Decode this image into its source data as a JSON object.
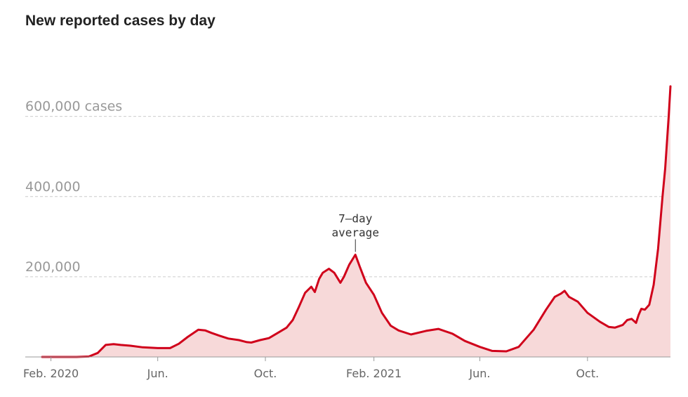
{
  "chart_data": {
    "type": "area",
    "title": "New reported cases by day",
    "xlabel": "",
    "ylabel": "",
    "ylim": [
      0,
      680000
    ],
    "grid": true,
    "yticks": [
      {
        "value": 200000,
        "label": "200,000"
      },
      {
        "value": 400000,
        "label": "400,000"
      },
      {
        "value": 600000,
        "label": "600,000 cases"
      }
    ],
    "xticks": [
      {
        "date": "2020-02-01",
        "label": "Feb. 2020"
      },
      {
        "date": "2020-06-01",
        "label": "Jun."
      },
      {
        "date": "2020-10-01",
        "label": "Oct."
      },
      {
        "date": "2021-02-01",
        "label": "Feb. 2021"
      },
      {
        "date": "2021-06-01",
        "label": "Jun."
      },
      {
        "date": "2021-10-01",
        "label": "Oct."
      }
    ],
    "annotation": {
      "lines": [
        "7–day",
        "average"
      ],
      "date": "2021-01-11",
      "value": 255000
    },
    "colors": {
      "line": "#d0021b",
      "fill": "#f7d9d9"
    },
    "series": [
      {
        "x": [
          "2020-01-22",
          "2020-02-15",
          "2020-03-01",
          "2020-03-15",
          "2020-03-25",
          "2020-04-03",
          "2020-04-12",
          "2020-04-20",
          "2020-05-01",
          "2020-05-15",
          "2020-06-01",
          "2020-06-15",
          "2020-06-25",
          "2020-07-05",
          "2020-07-17",
          "2020-07-25",
          "2020-08-01",
          "2020-08-10",
          "2020-08-20",
          "2020-09-01",
          "2020-09-10",
          "2020-09-15",
          "2020-09-25",
          "2020-10-05",
          "2020-10-15",
          "2020-10-25",
          "2020-11-01",
          "2020-11-08",
          "2020-11-15",
          "2020-11-22",
          "2020-11-26",
          "2020-12-01",
          "2020-12-05",
          "2020-12-12",
          "2020-12-18",
          "2020-12-25",
          "2020-12-29",
          "2021-01-04",
          "2021-01-11",
          "2021-01-16",
          "2021-01-23",
          "2021-02-01",
          "2021-02-10",
          "2021-02-20",
          "2021-03-01",
          "2021-03-15",
          "2021-04-01",
          "2021-04-15",
          "2021-05-01",
          "2021-05-15",
          "2021-06-01",
          "2021-06-15",
          "2021-07-01",
          "2021-07-15",
          "2021-08-01",
          "2021-08-15",
          "2021-08-25",
          "2021-09-01",
          "2021-09-05",
          "2021-09-10",
          "2021-09-20",
          "2021-10-01",
          "2021-10-15",
          "2021-10-25",
          "2021-11-01",
          "2021-11-10",
          "2021-11-15",
          "2021-11-20",
          "2021-11-25",
          "2021-11-28",
          "2021-12-01",
          "2021-12-05",
          "2021-12-10",
          "2021-12-15",
          "2021-12-20",
          "2021-12-25",
          "2021-12-28",
          "2022-01-01",
          "2022-01-03"
        ],
        "y": [
          0,
          0,
          0,
          1000,
          10000,
          30000,
          32000,
          30000,
          28000,
          24000,
          22000,
          22000,
          33000,
          50000,
          68000,
          66000,
          60000,
          53000,
          46000,
          42000,
          37000,
          36000,
          42000,
          47000,
          60000,
          73000,
          92000,
          125000,
          160000,
          175000,
          162000,
          195000,
          210000,
          220000,
          210000,
          185000,
          200000,
          230000,
          255000,
          225000,
          185000,
          155000,
          110000,
          78000,
          66000,
          56000,
          65000,
          70000,
          58000,
          40000,
          25000,
          15000,
          14000,
          25000,
          68000,
          118000,
          150000,
          158000,
          165000,
          150000,
          138000,
          110000,
          88000,
          75000,
          73000,
          80000,
          92000,
          95000,
          85000,
          105000,
          120000,
          118000,
          130000,
          180000,
          270000,
          400000,
          470000,
          600000,
          675000
        ]
      }
    ]
  }
}
